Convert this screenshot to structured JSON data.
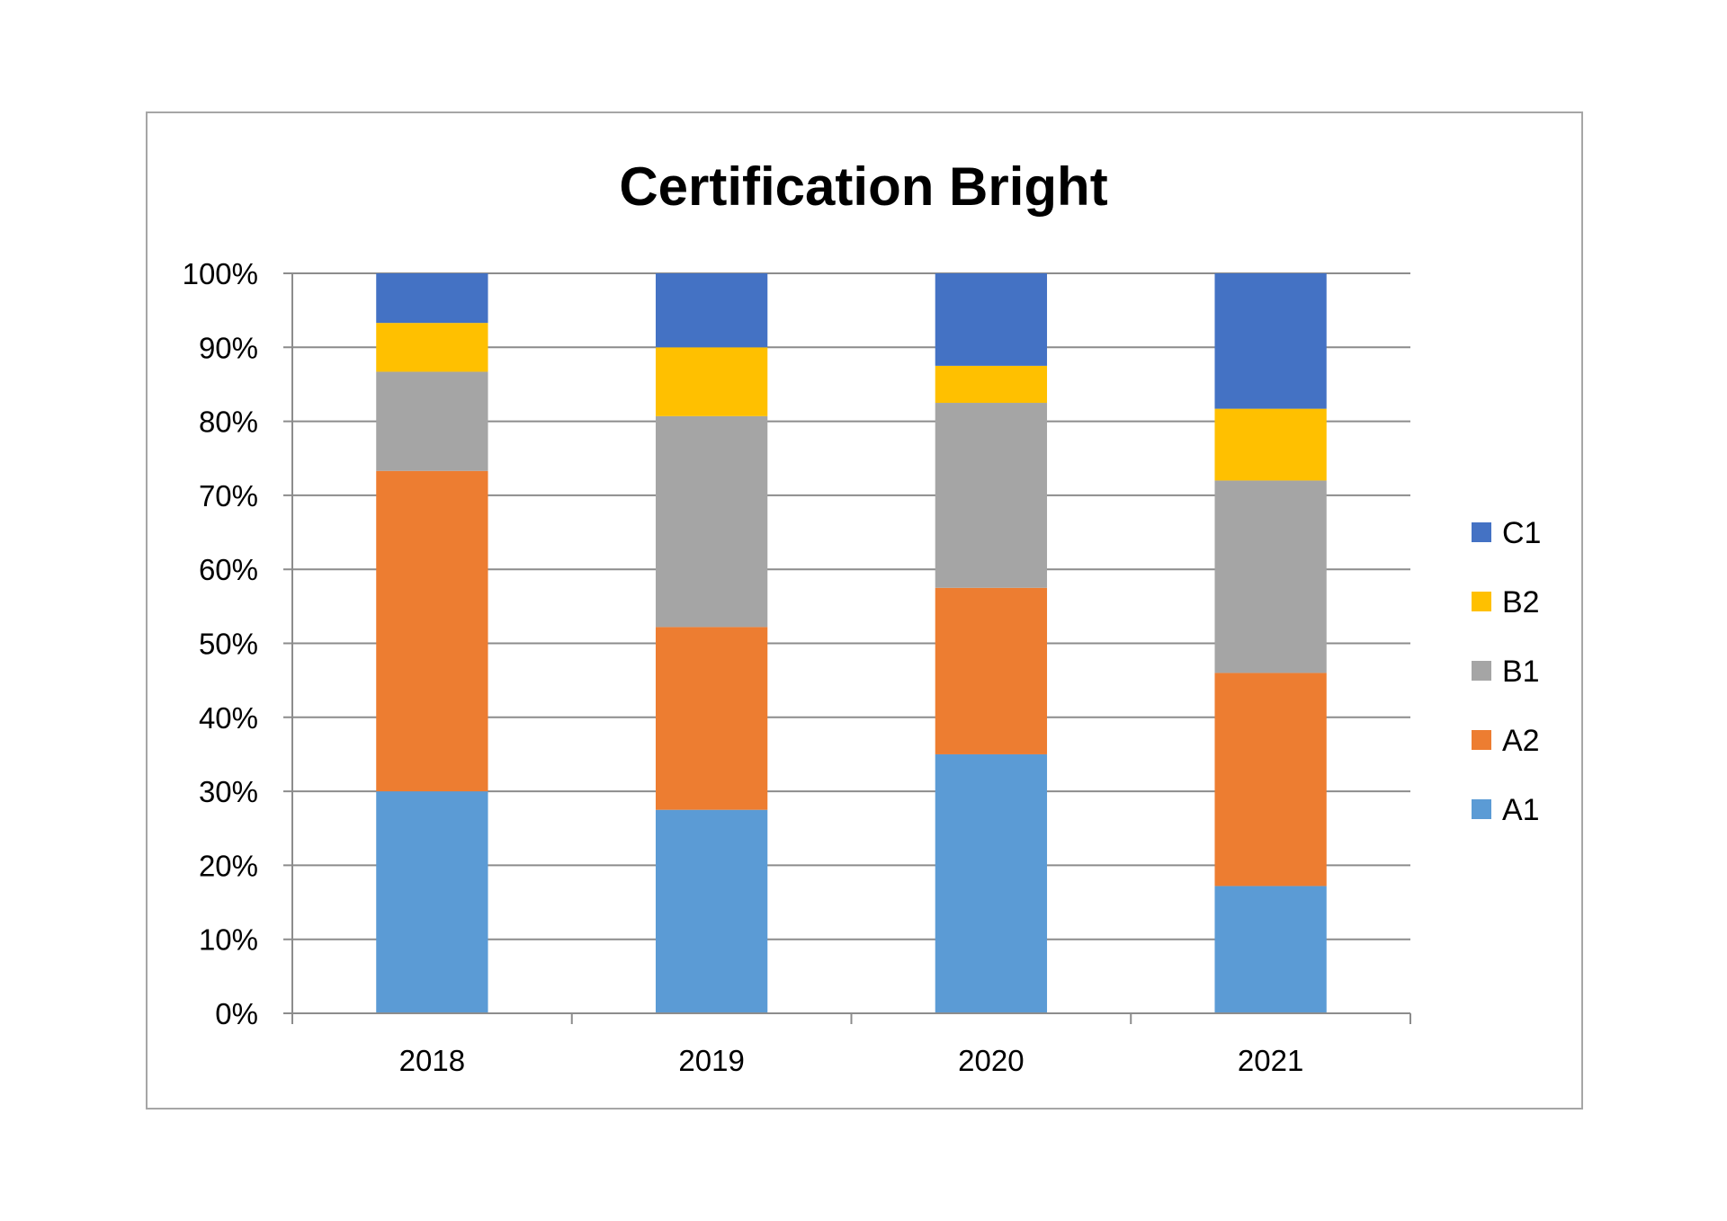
{
  "chart_data": {
    "type": "bar",
    "stacked": true,
    "normalized": true,
    "title": "Certification Bright",
    "categories": [
      "2018",
      "2019",
      "2020",
      "2021"
    ],
    "ylim": [
      0,
      100
    ],
    "yticks": [
      "0%",
      "10%",
      "20%",
      "30%",
      "40%",
      "50%",
      "60%",
      "70%",
      "80%",
      "90%",
      "100%"
    ],
    "grid": true,
    "legend_position": "right",
    "series": [
      {
        "name": "A1",
        "color": "#5b9bd5",
        "values": [
          30,
          27.5,
          35,
          17.2
        ]
      },
      {
        "name": "A2",
        "color": "#ed7d31",
        "values": [
          43.3,
          24.7,
          22.5,
          28.8
        ]
      },
      {
        "name": "B1",
        "color": "#a5a5a5",
        "values": [
          13.4,
          28.5,
          25,
          26
        ]
      },
      {
        "name": "B2",
        "color": "#ffc000",
        "values": [
          6.6,
          9.3,
          5,
          9.7
        ]
      },
      {
        "name": "C1",
        "color": "#4472c4",
        "values": [
          6.7,
          10,
          12.5,
          18.3
        ]
      }
    ]
  }
}
